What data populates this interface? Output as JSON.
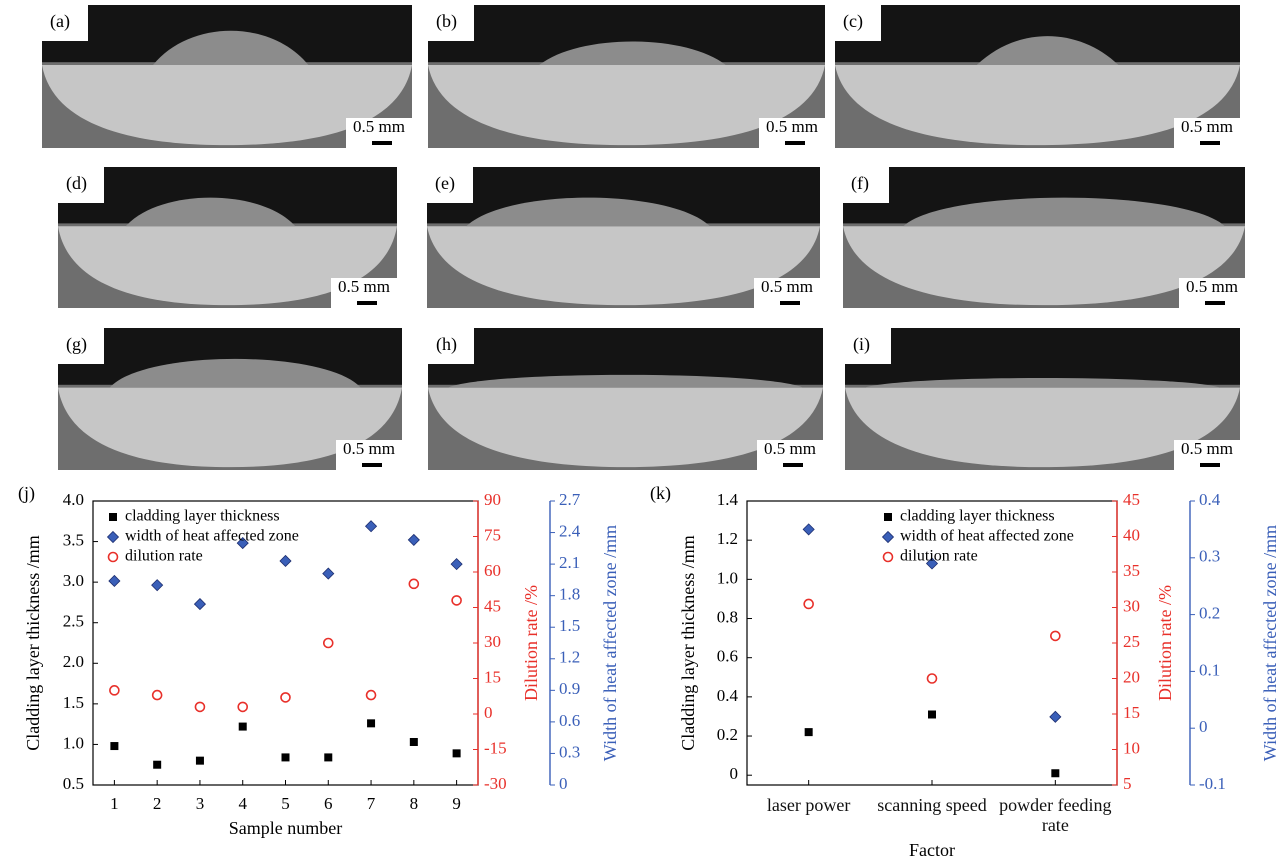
{
  "micrographs": [
    {
      "label": "(a)",
      "scale": "0.5 mm"
    },
    {
      "label": "(b)",
      "scale": "0.5 mm"
    },
    {
      "label": "(c)",
      "scale": "0.5 mm"
    },
    {
      "label": "(d)",
      "scale": "0.5 mm"
    },
    {
      "label": "(e)",
      "scale": "0.5 mm"
    },
    {
      "label": "(f)",
      "scale": "0.5 mm"
    },
    {
      "label": "(g)",
      "scale": "0.5 mm"
    },
    {
      "label": "(h)",
      "scale": "0.5 mm"
    },
    {
      "label": "(i)",
      "scale": "0.5 mm"
    }
  ],
  "chart_data": [
    {
      "type": "scatter",
      "panel_label": "(j)",
      "x_label": "Sample number",
      "y_label": "Cladding layer thickness /mm",
      "y2_label": "Dilution rate /%",
      "y3_label": "Width of heat affected zone /mm",
      "x": [
        1,
        2,
        3,
        4,
        5,
        6,
        7,
        8,
        9
      ],
      "xlim": [
        0.5,
        9.5
      ],
      "xticks": [
        1,
        2,
        3,
        4,
        5,
        6,
        7,
        8,
        9
      ],
      "ylim": [
        0.5,
        4.0
      ],
      "yticks": [
        0.5,
        {
          "value": 1,
          "label": "1.0"
        },
        1.5,
        {
          "value": 2,
          "label": "2.0"
        },
        2.5,
        {
          "value": 3,
          "label": "3.0"
        },
        3.5,
        {
          "value": 4,
          "label": "4.0"
        }
      ],
      "y2lim": [
        -30,
        90
      ],
      "y2ticks": [
        -30,
        -15,
        0,
        15,
        30,
        45,
        60,
        75,
        90
      ],
      "y3lim": [
        0,
        2.7
      ],
      "y3ticks": [
        0,
        0.3,
        0.6,
        0.9,
        1.2,
        1.5,
        1.8,
        2.1,
        2.4,
        2.7
      ],
      "legend": "upper left",
      "series": [
        {
          "name": "cladding layer thickness",
          "color": "#000000",
          "marker": "square",
          "values": [
            0.98,
            0.75,
            0.8,
            1.22,
            0.84,
            0.84,
            1.26,
            1.03,
            0.89
          ]
        },
        {
          "name": "width of heat affected zone",
          "color": "#3a5fb8",
          "marker": "diamond",
          "axis": "y3",
          "values": [
            1.94,
            1.9,
            1.72,
            2.3,
            2.13,
            2.01,
            2.46,
            2.33,
            2.1
          ]
        },
        {
          "name": "dilution rate",
          "color": "#e8302a",
          "marker": "circle-open",
          "axis": "y2",
          "values": [
            10,
            8,
            3,
            3,
            7,
            30,
            8,
            55,
            48
          ]
        }
      ]
    },
    {
      "type": "scatter",
      "panel_label": "(k)",
      "x_label": "Factor",
      "y_label": "Cladding layer thickness /mm",
      "y2_label": "Dilution rate /%",
      "y3_label": "Width of heat affected zone /mm",
      "categories": [
        "laser power",
        "scanning speed",
        "powder feeding rate"
      ],
      "ylim": [
        -0.05,
        1.4
      ],
      "yticks": [
        0,
        0.2,
        0.4,
        0.6,
        0.8,
        {
          "value": 1,
          "label": "1.0"
        },
        1.2,
        1.4
      ],
      "y2lim": [
        5,
        45
      ],
      "y2ticks": [
        5,
        10,
        15,
        20,
        25,
        30,
        35,
        40,
        45
      ],
      "y3lim": [
        -0.1,
        0.4
      ],
      "y3ticks": [
        -0.1,
        0,
        0.1,
        0.2,
        0.3,
        0.4
      ],
      "legend": "upper right",
      "series": [
        {
          "name": "cladding layer thickness",
          "color": "#000000",
          "marker": "square",
          "values": [
            0.22,
            0.31,
            0.01
          ]
        },
        {
          "name": "width of heat affected zone",
          "color": "#3a5fb8",
          "marker": "diamond",
          "axis": "y3",
          "values": [
            0.35,
            0.29,
            0.02
          ]
        },
        {
          "name": "dilution rate",
          "color": "#e8302a",
          "marker": "circle-open",
          "axis": "y2",
          "values": [
            30.5,
            20,
            26
          ]
        }
      ]
    }
  ]
}
